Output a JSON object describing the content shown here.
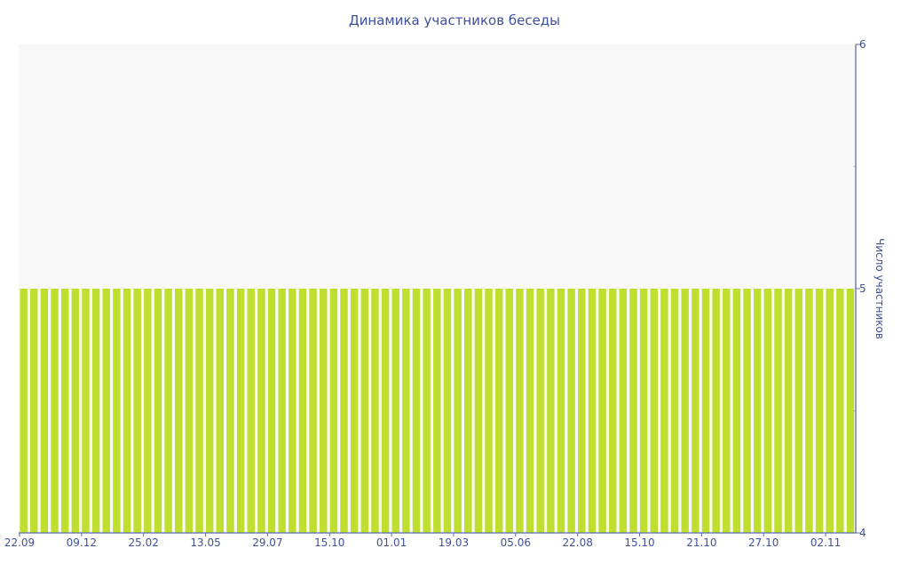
{
  "chart_data": {
    "type": "bar",
    "title": "Динамика участников беседы",
    "xlabel": "",
    "ylabel": "Число участников",
    "ylim": [
      4,
      6
    ],
    "y_ticks": [
      "4",
      "5",
      "6"
    ],
    "y_axis_side": "right",
    "grid": false,
    "values": [
      5,
      5,
      5,
      5,
      5,
      5,
      5,
      5,
      5,
      5,
      5,
      5,
      5,
      5,
      5,
      5,
      5,
      5,
      5,
      5,
      5,
      5,
      5,
      5,
      5,
      5,
      5,
      5,
      5,
      5,
      5,
      5,
      5,
      5,
      5,
      5,
      5,
      5,
      5,
      5,
      5,
      5,
      5,
      5,
      5,
      5,
      5,
      5,
      5,
      5,
      5,
      5,
      5,
      5,
      5,
      5,
      5,
      5,
      5,
      5,
      5,
      5,
      5,
      5,
      5,
      5,
      5,
      5,
      5,
      5,
      5,
      5,
      5,
      5,
      5,
      5,
      5,
      5,
      5,
      5,
      5
    ],
    "x_tick_labels": [
      "22.09",
      "09.12",
      "25.02",
      "13.05",
      "29.07",
      "15.10",
      "01.01",
      "19.03",
      "05.06",
      "22.08",
      "15.10",
      "21.10",
      "27.10",
      "02.11"
    ],
    "x_tick_every": 6,
    "colors": {
      "bar": "#bfdf2f",
      "plot_background": "#f8f8f8",
      "text": "#3d4f9f",
      "axis": "#5a6bb0"
    }
  }
}
